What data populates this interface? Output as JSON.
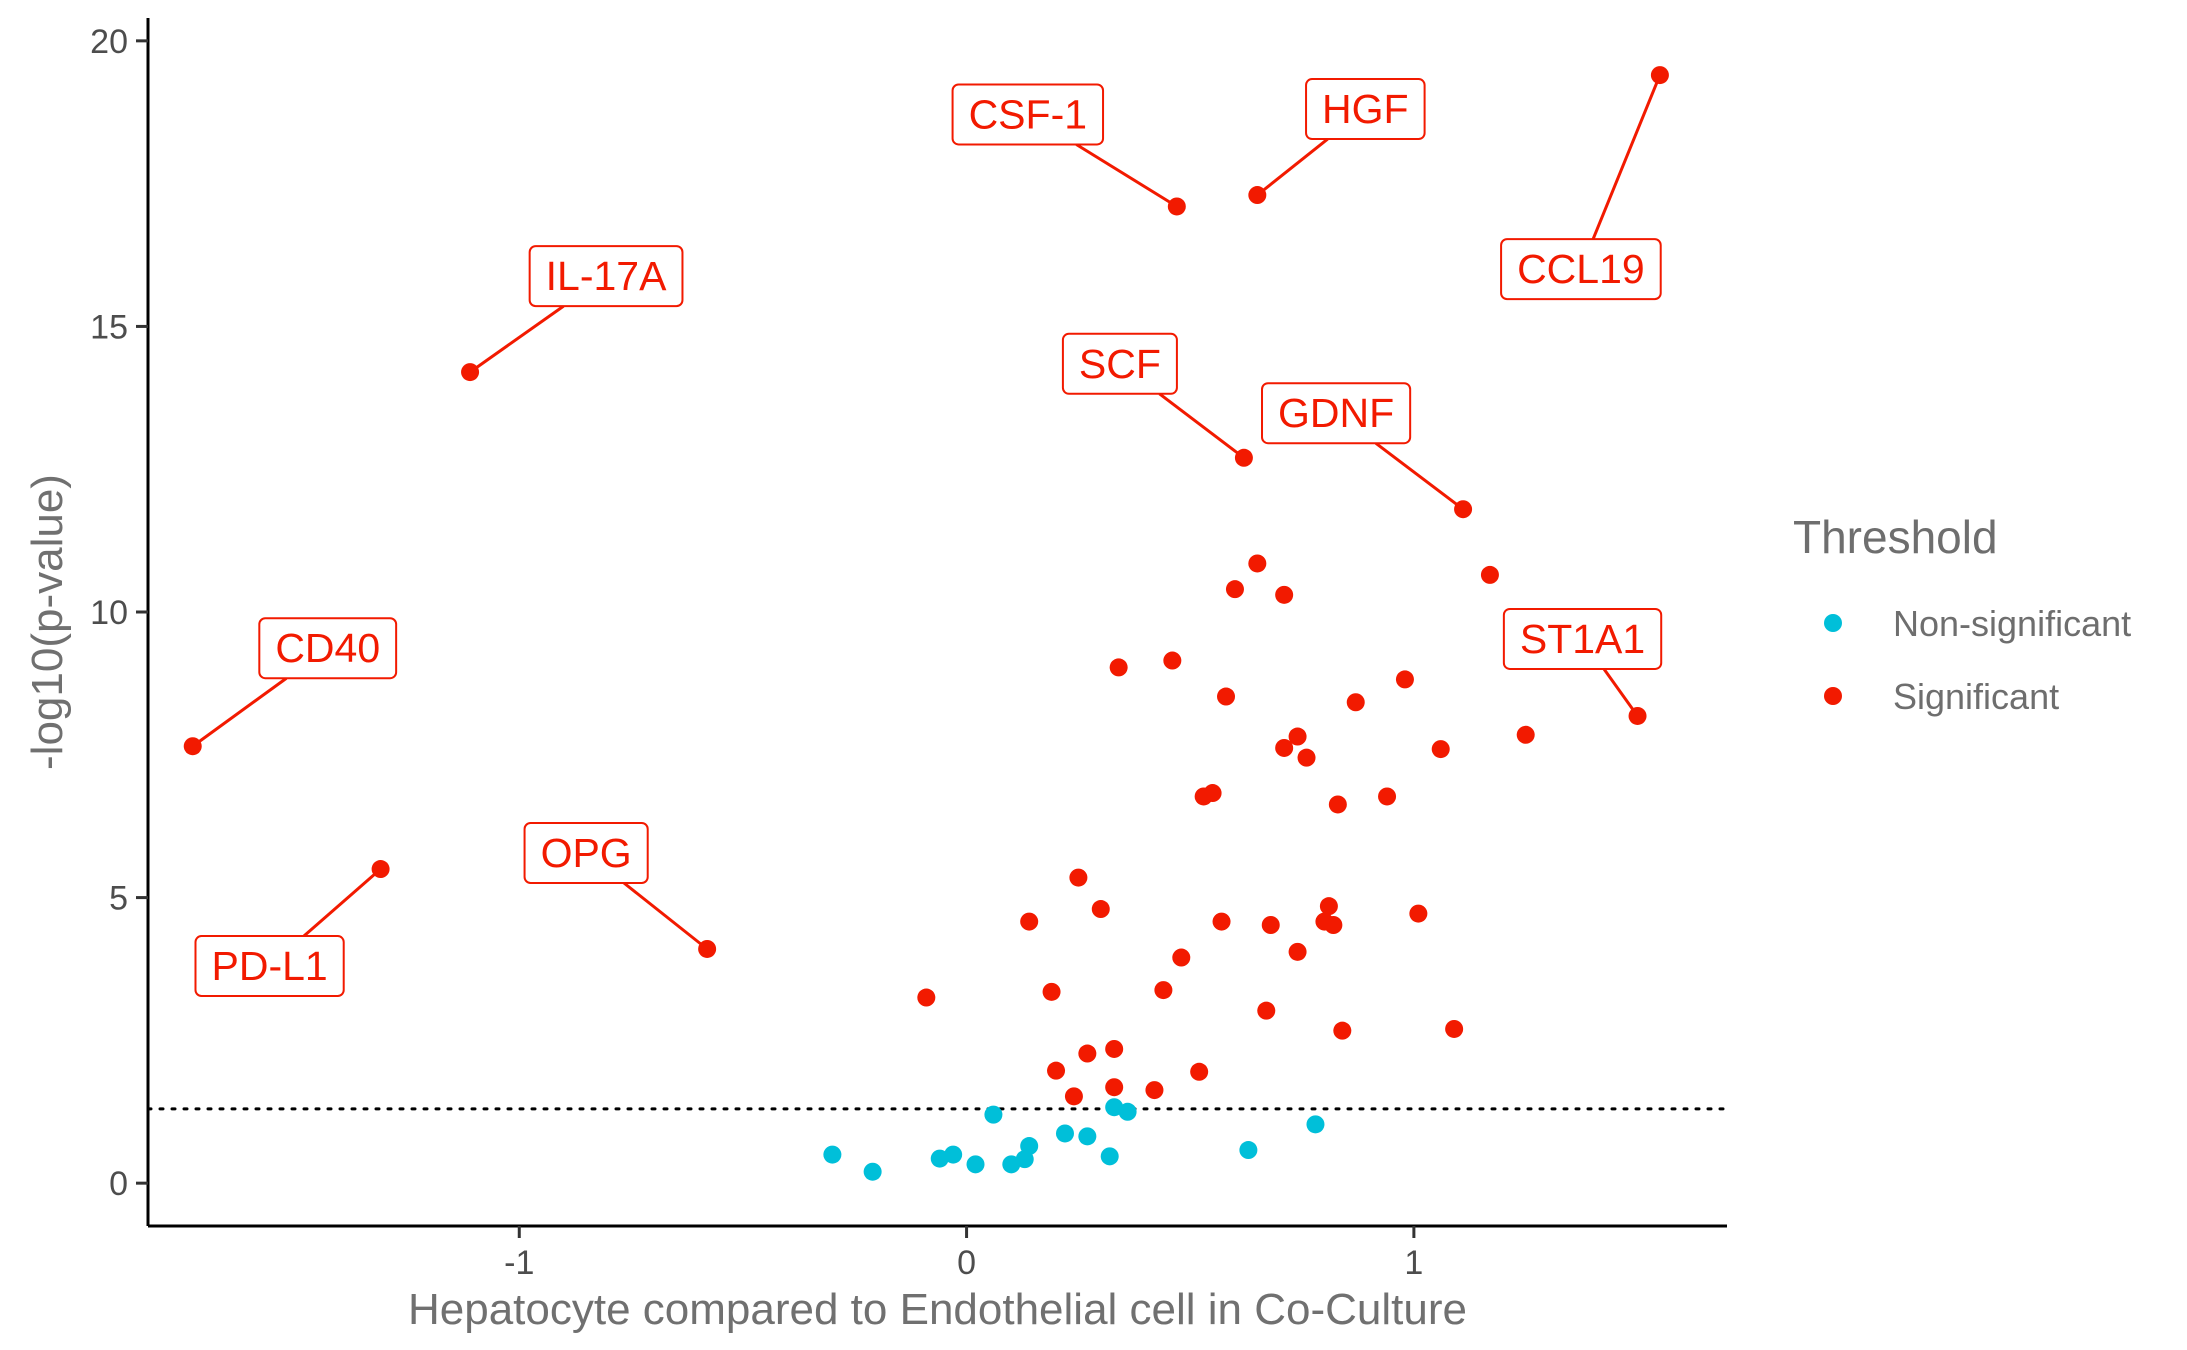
{
  "chart_data": {
    "type": "scatter",
    "xlabel": "Hepatocyte compared to Endothelial cell in Co-Culture",
    "ylabel": "-log10(p-value)",
    "xlim": [
      -1.83,
      1.7
    ],
    "ylim": [
      -0.75,
      20.4
    ],
    "x_ticks": [
      -1,
      0,
      1
    ],
    "y_ticks": [
      0,
      5,
      10,
      15,
      20
    ],
    "grid": false,
    "threshold_line": {
      "y": 1.3,
      "style": "dotted"
    },
    "legend": {
      "title": "Threshold",
      "placement": "right",
      "entries": [
        {
          "label": "Non-significant",
          "color": "#00BFD9"
        },
        {
          "label": "Significant",
          "color": "#F21A00"
        }
      ]
    },
    "series": [
      {
        "name": "Non-significant",
        "color": "#00BFD9",
        "points": [
          [
            -0.3,
            0.5
          ],
          [
            -0.21,
            0.2
          ],
          [
            -0.06,
            0.43
          ],
          [
            -0.03,
            0.5
          ],
          [
            0.02,
            0.33
          ],
          [
            0.06,
            1.2
          ],
          [
            0.1,
            0.33
          ],
          [
            0.13,
            0.42
          ],
          [
            0.14,
            0.65
          ],
          [
            0.22,
            0.87
          ],
          [
            0.27,
            0.82
          ],
          [
            0.32,
            0.47
          ],
          [
            0.33,
            1.33
          ],
          [
            0.36,
            1.25
          ],
          [
            0.63,
            0.58
          ],
          [
            0.78,
            1.03
          ]
        ]
      },
      {
        "name": "Significant",
        "color": "#F21A00",
        "points": [
          [
            -1.73,
            7.65
          ],
          [
            -1.31,
            5.5
          ],
          [
            -1.11,
            14.2
          ],
          [
            -0.58,
            4.1
          ],
          [
            0.47,
            17.1
          ],
          [
            0.65,
            17.3
          ],
          [
            1.55,
            19.4
          ],
          [
            0.62,
            12.7
          ],
          [
            1.11,
            11.8
          ],
          [
            1.5,
            8.18
          ],
          [
            -0.09,
            3.25
          ],
          [
            0.14,
            4.58
          ],
          [
            0.19,
            3.35
          ],
          [
            0.2,
            1.97
          ],
          [
            0.24,
            1.52
          ],
          [
            0.25,
            5.35
          ],
          [
            0.27,
            2.27
          ],
          [
            0.3,
            4.8
          ],
          [
            0.33,
            2.35
          ],
          [
            0.33,
            1.68
          ],
          [
            0.34,
            9.03
          ],
          [
            0.42,
            1.63
          ],
          [
            0.44,
            3.38
          ],
          [
            0.46,
            9.15
          ],
          [
            0.48,
            3.95
          ],
          [
            0.52,
            1.95
          ],
          [
            0.53,
            6.77
          ],
          [
            0.55,
            6.83
          ],
          [
            0.57,
            4.58
          ],
          [
            0.58,
            8.52
          ],
          [
            0.6,
            10.4
          ],
          [
            0.65,
            10.85
          ],
          [
            0.67,
            3.02
          ],
          [
            0.68,
            4.52
          ],
          [
            0.71,
            10.3
          ],
          [
            0.71,
            7.62
          ],
          [
            0.74,
            4.05
          ],
          [
            0.74,
            7.82
          ],
          [
            0.76,
            7.45
          ],
          [
            0.8,
            4.58
          ],
          [
            0.81,
            4.85
          ],
          [
            0.82,
            4.52
          ],
          [
            0.83,
            6.63
          ],
          [
            0.84,
            2.67
          ],
          [
            0.87,
            8.42
          ],
          [
            0.94,
            6.77
          ],
          [
            0.98,
            8.82
          ],
          [
            1.01,
            4.72
          ],
          [
            1.06,
            7.6
          ],
          [
            1.09,
            2.7
          ],
          [
            1.17,
            10.65
          ],
          [
            1.25,
            7.85
          ]
        ]
      }
    ],
    "labels": [
      {
        "text": "CD40",
        "x": -1.73,
        "y": 7.65
      },
      {
        "text": "PD-L1",
        "x": -1.31,
        "y": 5.5
      },
      {
        "text": "IL-17A",
        "x": -1.11,
        "y": 14.2
      },
      {
        "text": "OPG",
        "x": -0.58,
        "y": 4.1
      },
      {
        "text": "CSF-1",
        "x": 0.47,
        "y": 17.1
      },
      {
        "text": "HGF",
        "x": 0.65,
        "y": 17.3
      },
      {
        "text": "CCL19",
        "x": 1.55,
        "y": 19.4
      },
      {
        "text": "SCF",
        "x": 0.62,
        "y": 12.7
      },
      {
        "text": "GDNF",
        "x": 1.11,
        "y": 11.8
      },
      {
        "text": "ST1A1",
        "x": 1.5,
        "y": 8.18
      }
    ]
  }
}
